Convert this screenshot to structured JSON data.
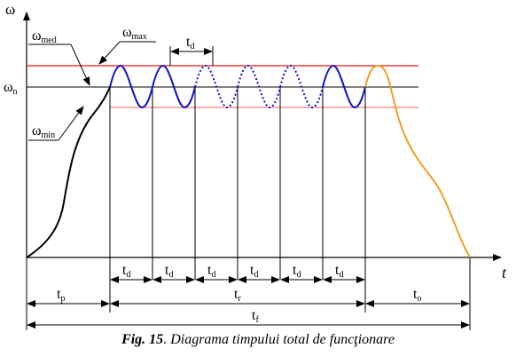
{
  "diagram": {
    "y_axis_label": "ω",
    "x_axis_label": "t",
    "level_labels": {
      "omega_n": {
        "sym": "ω",
        "sub": "n"
      },
      "omega_med": {
        "sym": "ω",
        "sub": "med"
      },
      "omega_max": {
        "sym": "ω",
        "sub": "max"
      },
      "omega_min": {
        "sym": "ω",
        "sub": "min"
      }
    },
    "period_label": {
      "sym": "t",
      "sub": "d"
    },
    "phase_labels": {
      "tp": {
        "sym": "t",
        "sub": "p"
      },
      "tr": {
        "sym": "t",
        "sub": "r"
      },
      "to": {
        "sym": "t",
        "sub": "o"
      },
      "tf": {
        "sym": "t",
        "sub": "f"
      }
    },
    "colors": {
      "max_line": "#e01818",
      "min_line": "#f08080",
      "oscillation": "#1010c8",
      "stop_phase": "#f0a020",
      "start_phase": "#000000"
    }
  },
  "caption": {
    "fig_label": "Fig. 15",
    "text": ". Diagrama timpului total de funcţionare"
  }
}
